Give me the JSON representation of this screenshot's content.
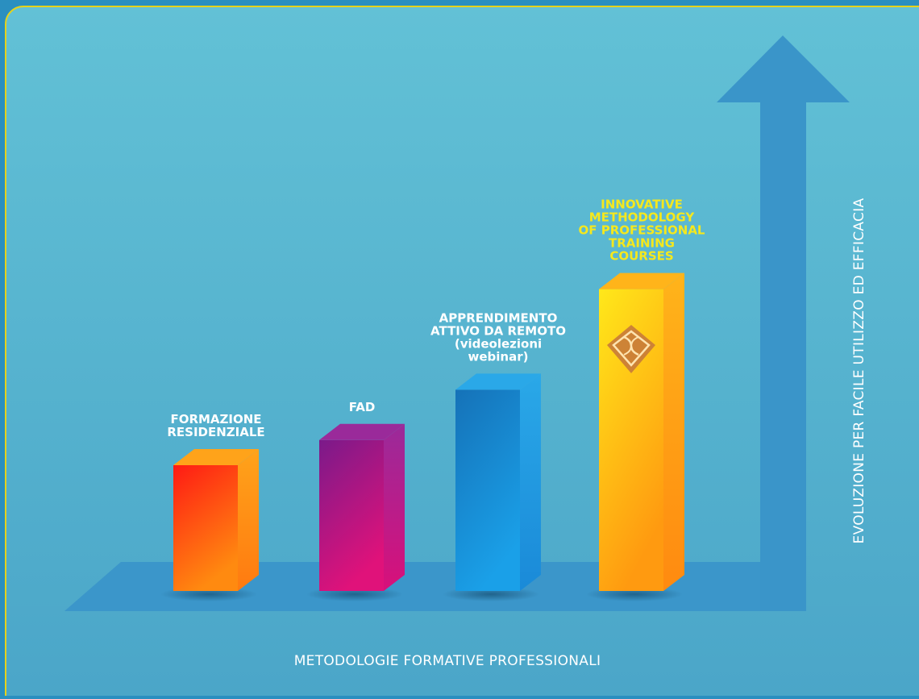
{
  "chart_data": {
    "type": "bar",
    "categories": [
      "FORMAZIONE RESIDENZIALE",
      "FAD",
      "APPRENDIMENTO ATTIVO DA REMOTO (videolezioni webinar)",
      "INNOVATIVE METHODOLOGY OF PROFESSIONAL TRAINING COURSES"
    ],
    "category_lines": [
      [
        "FORMAZIONE",
        "RESIDENZIALE"
      ],
      [
        "FAD"
      ],
      [
        "APPRENDIMENTO",
        "ATTIVO DA REMOTO",
        "(videolezioni",
        "webinar)"
      ],
      [
        "INNOVATIVE",
        "METHODOLOGY",
        "OF PROFESSIONAL",
        "TRAINING",
        "COURSES"
      ]
    ],
    "values": [
      1,
      1.2,
      1.6,
      2.4
    ],
    "xlabel": "METODOLOGIE FORMATIVE PROFESSIONALI",
    "ylabel": "EVOLUZIONE PER FACILE UTILIZZO ED EFFICACIA",
    "ylim": [
      0,
      2.5
    ],
    "highlight_index": 3,
    "grid": false,
    "colors": {
      "background_panel": "#5bb8d3",
      "panel_border": "#e6d21a",
      "axis_arrow": "#3a95c9",
      "bars": [
        {
          "front_top": "#ff1a14",
          "front_bottom": "#ff8a10",
          "side": "#ff7a10",
          "top": "#ffa31a"
        },
        {
          "front_top": "#7a1a8a",
          "front_bottom": "#e0127a",
          "side": "#d8107a",
          "top": "#9a2a9a"
        },
        {
          "front_top": "#1572b8",
          "front_bottom": "#1aa0e8",
          "side": "#1a8ad8",
          "top": "#2aa8e8"
        },
        {
          "front_top": "#ffe81a",
          "front_bottom": "#ff9a10",
          "side": "#ff8a10",
          "top": "#ffb41a"
        }
      ]
    }
  }
}
